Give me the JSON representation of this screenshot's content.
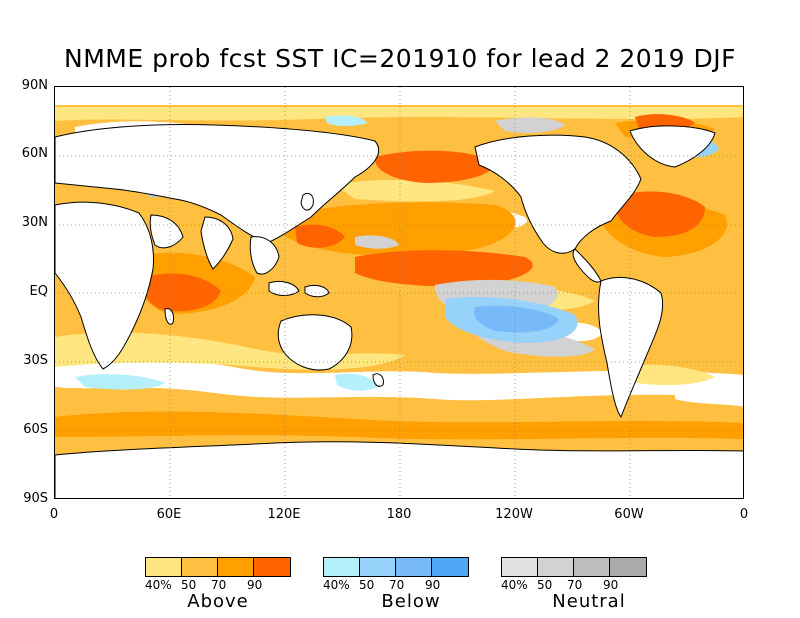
{
  "title": "NMME prob fcst SST IC=201910 for lead 2 2019 DJF",
  "map": {
    "lat_labels": [
      "90N",
      "60N",
      "30N",
      "EQ",
      "30S",
      "60S",
      "90S"
    ],
    "lon_labels": [
      "0",
      "60E",
      "120E",
      "180",
      "120W",
      "60W",
      "0"
    ]
  },
  "legend": {
    "groups": [
      {
        "name": "Above",
        "colors": [
          "#ffe680",
          "#ffbf40",
          "#ff9f00",
          "#ff6400"
        ],
        "ticks": [
          "40%",
          "50",
          "70",
          "90"
        ]
      },
      {
        "name": "Below",
        "colors": [
          "#b4f0fa",
          "#96d2fa",
          "#78b9fa",
          "#50a5f5"
        ],
        "ticks": [
          "40%",
          "50",
          "70",
          "90"
        ]
      },
      {
        "name": "Neutral",
        "colors": [
          "#e1e1e1",
          "#d2d2d2",
          "#bebebe",
          "#aaaaaa"
        ],
        "ticks": [
          "40%",
          "50",
          "70",
          "90"
        ]
      }
    ]
  }
}
